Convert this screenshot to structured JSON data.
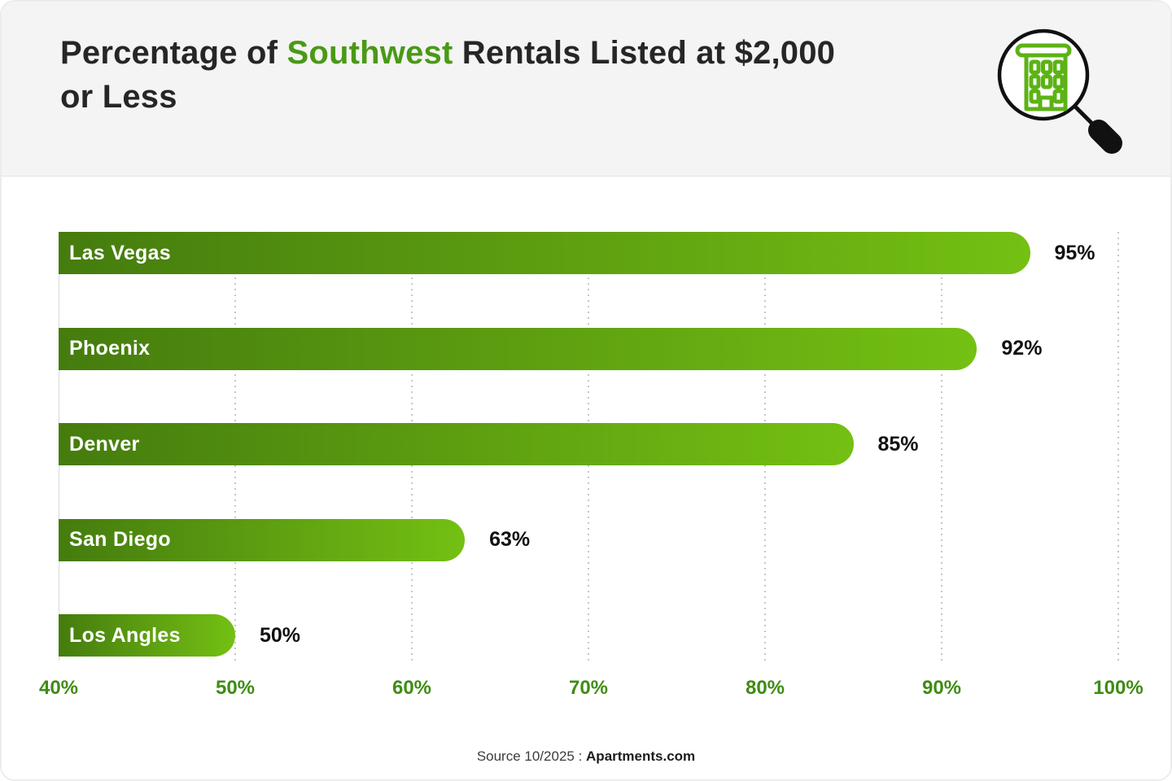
{
  "header": {
    "title_prefix": "Percentage of ",
    "title_highlight": "Southwest",
    "title_suffix": " Rentals Listed at $2,000 or Less",
    "icon": "magnifier-building-icon"
  },
  "footer": {
    "source_prefix": "Source 10/2025 : ",
    "source_name": "Apartments.com"
  },
  "colors": {
    "accent_green": "#4a9916",
    "tick_green": "#3f8c14",
    "bar_gradient_start": "#457c0e",
    "bar_gradient_end": "#74c013",
    "icon_green": "#5cb314",
    "header_bg": "#f4f4f4",
    "value_text": "#111111"
  },
  "chart_data": {
    "type": "bar",
    "orientation": "horizontal",
    "title": "Percentage of Southwest Rentals Listed at $2,000 or Less",
    "categories": [
      "Las Vegas",
      "Phoenix",
      "Denver",
      "San Diego",
      "Los Angles"
    ],
    "values": [
      95,
      92,
      85,
      63,
      50
    ],
    "value_labels": [
      "95%",
      "92%",
      "85%",
      "63%",
      "50%"
    ],
    "xlim": [
      40,
      100
    ],
    "x_tick_values": [
      40,
      50,
      60,
      70,
      80,
      90,
      100
    ],
    "x_tick_labels": [
      "40%",
      "50%",
      "60%",
      "70%",
      "80%",
      "90%",
      "100%"
    ],
    "grid": "vertical dotted gridlines every 10%, solid baseline at 40%",
    "legend": "none",
    "bar_style": "gradient dark-to-bright green, rounded right cap, category label inside bar, value label outside right"
  }
}
